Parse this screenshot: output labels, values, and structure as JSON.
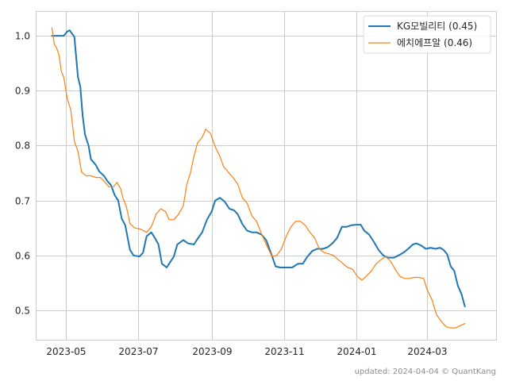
{
  "footer": "updated: 2024-04-04 © QuantKang",
  "chart_data": {
    "type": "line",
    "title": "",
    "xlabel": "",
    "ylabel": "",
    "xlim": [
      "2023-04-06",
      "2024-04-29"
    ],
    "ylim": [
      0.445,
      1.045
    ],
    "xticks": [
      "2023-05-01",
      "2023-07-01",
      "2023-09-01",
      "2023-11-01",
      "2024-01-01",
      "2024-03-01"
    ],
    "xtick_labels": [
      "2023-05",
      "2023-07",
      "2023-09",
      "2023-11",
      "2024-01",
      "2024-03"
    ],
    "yticks": [
      0.5,
      0.6,
      0.7,
      0.8,
      0.9,
      1.0
    ],
    "ytick_labels": [
      "0.5",
      "0.6",
      "0.7",
      "0.8",
      "0.9",
      "1.0"
    ],
    "grid": true,
    "legend_position": "top-right",
    "series": [
      {
        "name": "KG모빌리티 (0.45)",
        "color": "#1f77b4",
        "points": [
          [
            "2023-04-19",
            1.0
          ],
          [
            "2023-04-29",
            1.0
          ],
          [
            "2023-05-02",
            1.008
          ],
          [
            "2023-05-04",
            1.01
          ],
          [
            "2023-05-08",
            0.998
          ],
          [
            "2023-05-11",
            0.925
          ],
          [
            "2023-05-13",
            0.907
          ],
          [
            "2023-05-15",
            0.855
          ],
          [
            "2023-05-17",
            0.82
          ],
          [
            "2023-05-20",
            0.8
          ],
          [
            "2023-05-22",
            0.775
          ],
          [
            "2023-05-26",
            0.765
          ],
          [
            "2023-05-29",
            0.753
          ],
          [
            "2023-06-02",
            0.745
          ],
          [
            "2023-06-05",
            0.735
          ],
          [
            "2023-06-08",
            0.728
          ],
          [
            "2023-06-11",
            0.71
          ],
          [
            "2023-06-14",
            0.7
          ],
          [
            "2023-06-17",
            0.667
          ],
          [
            "2023-06-20",
            0.655
          ],
          [
            "2023-06-24",
            0.61
          ],
          [
            "2023-06-27",
            0.6
          ],
          [
            "2023-07-02",
            0.598
          ],
          [
            "2023-07-05",
            0.605
          ],
          [
            "2023-07-08",
            0.635
          ],
          [
            "2023-07-12",
            0.642
          ],
          [
            "2023-07-15",
            0.632
          ],
          [
            "2023-07-18",
            0.62
          ],
          [
            "2023-07-21",
            0.585
          ],
          [
            "2023-07-25",
            0.578
          ],
          [
            "2023-07-28",
            0.588
          ],
          [
            "2023-07-31",
            0.598
          ],
          [
            "2023-08-03",
            0.62
          ],
          [
            "2023-08-08",
            0.628
          ],
          [
            "2023-08-12",
            0.622
          ],
          [
            "2023-08-17",
            0.62
          ],
          [
            "2023-08-20",
            0.63
          ],
          [
            "2023-08-24",
            0.642
          ],
          [
            "2023-08-28",
            0.665
          ],
          [
            "2023-09-01",
            0.68
          ],
          [
            "2023-09-04",
            0.7
          ],
          [
            "2023-09-08",
            0.705
          ],
          [
            "2023-09-12",
            0.698
          ],
          [
            "2023-09-16",
            0.685
          ],
          [
            "2023-09-20",
            0.682
          ],
          [
            "2023-09-23",
            0.675
          ],
          [
            "2023-09-27",
            0.657
          ],
          [
            "2023-10-01",
            0.645
          ],
          [
            "2023-10-05",
            0.642
          ],
          [
            "2023-10-09",
            0.642
          ],
          [
            "2023-10-13",
            0.638
          ],
          [
            "2023-10-17",
            0.628
          ],
          [
            "2023-10-21",
            0.605
          ],
          [
            "2023-10-25",
            0.58
          ],
          [
            "2023-10-29",
            0.578
          ],
          [
            "2023-11-03",
            0.578
          ],
          [
            "2023-11-08",
            0.578
          ],
          [
            "2023-11-13",
            0.585
          ],
          [
            "2023-11-17",
            0.585
          ],
          [
            "2023-11-21",
            0.598
          ],
          [
            "2023-11-25",
            0.608
          ],
          [
            "2023-11-29",
            0.612
          ],
          [
            "2023-12-04",
            0.612
          ],
          [
            "2023-12-08",
            0.615
          ],
          [
            "2023-12-12",
            0.622
          ],
          [
            "2023-12-16",
            0.632
          ],
          [
            "2023-12-20",
            0.652
          ],
          [
            "2023-12-24",
            0.652
          ],
          [
            "2023-12-28",
            0.655
          ],
          [
            "2024-01-01",
            0.656
          ],
          [
            "2024-01-05",
            0.656
          ],
          [
            "2024-01-08",
            0.645
          ],
          [
            "2024-01-12",
            0.638
          ],
          [
            "2024-01-16",
            0.625
          ],
          [
            "2024-01-20",
            0.61
          ],
          [
            "2024-01-24",
            0.6
          ],
          [
            "2024-01-28",
            0.596
          ],
          [
            "2024-02-02",
            0.596
          ],
          [
            "2024-02-06",
            0.6
          ],
          [
            "2024-02-10",
            0.605
          ],
          [
            "2024-02-14",
            0.612
          ],
          [
            "2024-02-18",
            0.62
          ],
          [
            "2024-02-21",
            0.622
          ],
          [
            "2024-02-25",
            0.618
          ],
          [
            "2024-02-29",
            0.612
          ],
          [
            "2024-03-04",
            0.614
          ],
          [
            "2024-03-08",
            0.612
          ],
          [
            "2024-03-12",
            0.614
          ],
          [
            "2024-03-15",
            0.61
          ],
          [
            "2024-03-18",
            0.602
          ],
          [
            "2024-03-21",
            0.58
          ],
          [
            "2024-03-24",
            0.572
          ],
          [
            "2024-03-27",
            0.545
          ],
          [
            "2024-03-30",
            0.53
          ],
          [
            "2024-04-02",
            0.507
          ]
        ]
      },
      {
        "name": "에치에프알 (0.46)",
        "color": "#ff7f0e",
        "points": [
          [
            "2023-04-19",
            1.015
          ],
          [
            "2023-04-21",
            0.985
          ],
          [
            "2023-04-23",
            0.978
          ],
          [
            "2023-04-25",
            0.965
          ],
          [
            "2023-04-27",
            0.935
          ],
          [
            "2023-04-29",
            0.925
          ],
          [
            "2023-05-02",
            0.885
          ],
          [
            "2023-05-05",
            0.865
          ],
          [
            "2023-05-08",
            0.808
          ],
          [
            "2023-05-11",
            0.79
          ],
          [
            "2023-05-14",
            0.752
          ],
          [
            "2023-05-18",
            0.745
          ],
          [
            "2023-05-22",
            0.745
          ],
          [
            "2023-05-26",
            0.742
          ],
          [
            "2023-05-30",
            0.742
          ],
          [
            "2023-06-03",
            0.733
          ],
          [
            "2023-06-06",
            0.725
          ],
          [
            "2023-06-10",
            0.725
          ],
          [
            "2023-06-13",
            0.733
          ],
          [
            "2023-06-16",
            0.722
          ],
          [
            "2023-06-18",
            0.705
          ],
          [
            "2023-06-21",
            0.688
          ],
          [
            "2023-06-24",
            0.658
          ],
          [
            "2023-06-28",
            0.65
          ],
          [
            "2023-07-03",
            0.648
          ],
          [
            "2023-07-08",
            0.642
          ],
          [
            "2023-07-12",
            0.652
          ],
          [
            "2023-07-16",
            0.675
          ],
          [
            "2023-07-20",
            0.685
          ],
          [
            "2023-07-24",
            0.68
          ],
          [
            "2023-07-27",
            0.665
          ],
          [
            "2023-07-31",
            0.665
          ],
          [
            "2023-08-04",
            0.675
          ],
          [
            "2023-08-08",
            0.69
          ],
          [
            "2023-08-11",
            0.73
          ],
          [
            "2023-08-14",
            0.75
          ],
          [
            "2023-08-17",
            0.78
          ],
          [
            "2023-08-20",
            0.805
          ],
          [
            "2023-08-24",
            0.815
          ],
          [
            "2023-08-27",
            0.83
          ],
          [
            "2023-08-31",
            0.822
          ],
          [
            "2023-09-04",
            0.798
          ],
          [
            "2023-09-08",
            0.78
          ],
          [
            "2023-09-11",
            0.762
          ],
          [
            "2023-09-15",
            0.752
          ],
          [
            "2023-09-19",
            0.742
          ],
          [
            "2023-09-23",
            0.73
          ],
          [
            "2023-09-27",
            0.705
          ],
          [
            "2023-10-01",
            0.695
          ],
          [
            "2023-10-05",
            0.672
          ],
          [
            "2023-10-09",
            0.662
          ],
          [
            "2023-10-13",
            0.64
          ],
          [
            "2023-10-17",
            0.62
          ],
          [
            "2023-10-22",
            0.598
          ],
          [
            "2023-10-26",
            0.6
          ],
          [
            "2023-10-30",
            0.612
          ],
          [
            "2023-11-03",
            0.635
          ],
          [
            "2023-11-07",
            0.652
          ],
          [
            "2023-11-11",
            0.662
          ],
          [
            "2023-11-15",
            0.662
          ],
          [
            "2023-11-19",
            0.655
          ],
          [
            "2023-11-23",
            0.642
          ],
          [
            "2023-11-27",
            0.632
          ],
          [
            "2023-12-01",
            0.612
          ],
          [
            "2023-12-05",
            0.605
          ],
          [
            "2023-12-09",
            0.603
          ],
          [
            "2023-12-13",
            0.6
          ],
          [
            "2023-12-17",
            0.592
          ],
          [
            "2023-12-21",
            0.585
          ],
          [
            "2023-12-25",
            0.578
          ],
          [
            "2023-12-29",
            0.575
          ],
          [
            "2024-01-02",
            0.562
          ],
          [
            "2024-01-06",
            0.555
          ],
          [
            "2024-01-10",
            0.563
          ],
          [
            "2024-01-14",
            0.572
          ],
          [
            "2024-01-18",
            0.585
          ],
          [
            "2024-01-22",
            0.592
          ],
          [
            "2024-01-26",
            0.598
          ],
          [
            "2024-01-30",
            0.59
          ],
          [
            "2024-02-03",
            0.575
          ],
          [
            "2024-02-07",
            0.562
          ],
          [
            "2024-02-11",
            0.558
          ],
          [
            "2024-02-15",
            0.558
          ],
          [
            "2024-02-19",
            0.56
          ],
          [
            "2024-02-23",
            0.56
          ],
          [
            "2024-02-27",
            0.558
          ],
          [
            "2024-03-01",
            0.538
          ],
          [
            "2024-03-05",
            0.52
          ],
          [
            "2024-03-09",
            0.492
          ],
          [
            "2024-03-13",
            0.48
          ],
          [
            "2024-03-17",
            0.47
          ],
          [
            "2024-03-21",
            0.468
          ],
          [
            "2024-03-25",
            0.468
          ],
          [
            "2024-03-29",
            0.472
          ],
          [
            "2024-04-02",
            0.476
          ]
        ]
      }
    ]
  }
}
